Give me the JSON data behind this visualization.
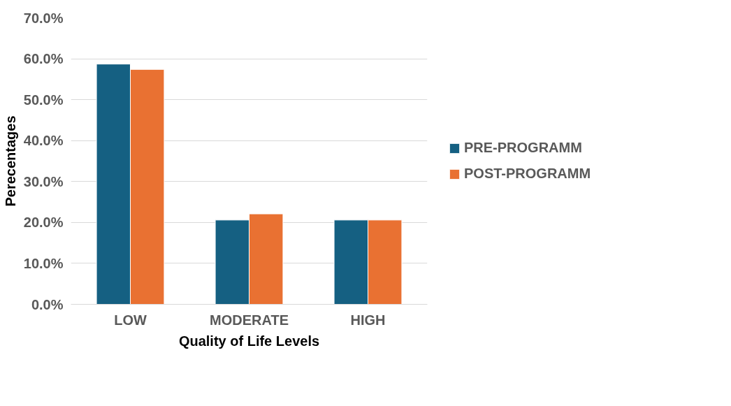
{
  "chart_data": {
    "type": "bar",
    "xlabel": "Quality of Life Levels",
    "ylabel": "Perecentages",
    "categories": [
      "LOW",
      "MODERATE",
      "HIGH"
    ],
    "series": [
      {
        "name": "PRE-PROGRAMM",
        "color": "#156082",
        "values": [
          58.7,
          20.6,
          20.6
        ]
      },
      {
        "name": "POST-PROGRAMM",
        "color": "#e97132",
        "values": [
          57.4,
          22.1,
          20.6
        ]
      }
    ],
    "ylim": [
      0,
      70
    ],
    "yticks": [
      {
        "value": 0,
        "label": "0.0%"
      },
      {
        "value": 10,
        "label": "10.0%"
      },
      {
        "value": 20,
        "label": "20.0%"
      },
      {
        "value": 30,
        "label": "30.0%"
      },
      {
        "value": 40,
        "label": "40.0%"
      },
      {
        "value": 50,
        "label": "50.0%"
      },
      {
        "value": 60,
        "label": "60.0%"
      },
      {
        "value": 70,
        "label": "70.0%"
      }
    ],
    "grid": "y",
    "legend": "right"
  }
}
